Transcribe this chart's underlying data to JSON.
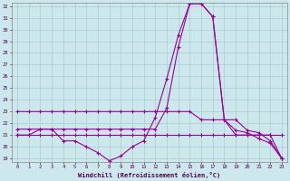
{
  "xlabel": "Windchill (Refroidissement éolien,°C)",
  "xlim": [
    0,
    23
  ],
  "ylim": [
    19,
    32
  ],
  "yticks": [
    19,
    20,
    21,
    22,
    23,
    24,
    25,
    26,
    27,
    28,
    29,
    30,
    31,
    32
  ],
  "xticks": [
    0,
    1,
    2,
    3,
    4,
    5,
    6,
    7,
    8,
    9,
    10,
    11,
    12,
    13,
    14,
    15,
    16,
    17,
    18,
    19,
    20,
    21,
    22,
    23
  ],
  "bg_color": "#cce8ec",
  "grid_color": "#aacccc",
  "line_color": "#990099",
  "lines": [
    {
      "x": [
        0,
        1,
        2,
        3,
        4,
        5,
        6,
        7,
        8,
        9,
        10,
        11,
        12,
        13,
        14,
        15,
        16,
        17,
        18,
        19,
        20,
        21,
        22,
        23
      ],
      "y": [
        23,
        23,
        23,
        23,
        23,
        23,
        23,
        23,
        23,
        23,
        23,
        23,
        23,
        23,
        23,
        23,
        22.3,
        22.3,
        22.3,
        21.0,
        21.0,
        21.0,
        21.0,
        19.0
      ]
    },
    {
      "x": [
        0,
        1,
        2,
        3,
        4,
        5,
        6,
        7,
        8,
        9,
        10,
        11,
        12,
        13,
        14,
        15,
        16,
        17,
        18,
        19,
        20,
        21,
        22,
        23
      ],
      "y": [
        21,
        21,
        21,
        21,
        21,
        21,
        21,
        21,
        21,
        21,
        21,
        21,
        21,
        21,
        21,
        21,
        21,
        21,
        21,
        21,
        21,
        21,
        21,
        21
      ]
    },
    {
      "x": [
        0,
        1,
        2,
        3,
        4,
        5,
        6,
        7,
        8,
        9,
        10,
        11,
        12,
        13,
        14,
        15,
        16,
        17,
        18,
        19,
        20,
        21,
        22,
        23
      ],
      "y": [
        21.5,
        21.5,
        21.5,
        21.5,
        21.5,
        21.5,
        21.5,
        21.5,
        21.5,
        21.5,
        21.5,
        21.5,
        21.5,
        23.3,
        28.5,
        32.2,
        32.2,
        31.1,
        22.3,
        22.3,
        21.4,
        21.2,
        20.5,
        19.0
      ]
    },
    {
      "x": [
        0,
        1,
        2,
        3,
        4,
        5,
        6,
        7,
        8,
        9,
        10,
        11,
        12,
        13,
        14,
        15,
        16,
        17,
        18,
        19,
        20,
        21,
        22,
        23
      ],
      "y": [
        21.0,
        21.0,
        21.5,
        21.5,
        20.5,
        20.5,
        20.0,
        19.5,
        18.8,
        19.2,
        20.0,
        20.5,
        22.5,
        25.8,
        29.5,
        32.2,
        32.2,
        31.1,
        22.3,
        21.4,
        21.2,
        20.7,
        20.3,
        19.0
      ]
    }
  ]
}
